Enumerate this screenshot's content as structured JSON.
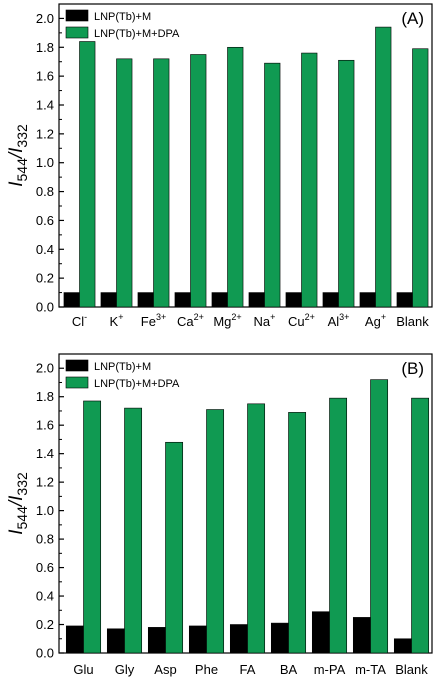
{
  "colors": {
    "series1": "#000000",
    "series2": "#109a52",
    "axis": "#000000"
  },
  "chart_data": [
    {
      "type": "bar",
      "panel_label": "(A)",
      "ylabel": {
        "main": "I",
        "sub1": "544",
        "sep": "/I",
        "sub2": "332"
      },
      "ylim": [
        0.0,
        2.1
      ],
      "yticks": [
        "0.0",
        "0.2",
        "0.4",
        "0.6",
        "0.8",
        "1.0",
        "1.2",
        "1.4",
        "1.6",
        "1.8",
        "2.0"
      ],
      "legend_position": "top-left",
      "grid": false,
      "categories": [
        {
          "base": "Cl",
          "sup": "-"
        },
        {
          "base": "K",
          "sup": "+"
        },
        {
          "base": "Fe",
          "sup": "3+"
        },
        {
          "base": "Ca",
          "sup": "2+"
        },
        {
          "base": "Mg",
          "sup": "2+"
        },
        {
          "base": "Na",
          "sup": "+"
        },
        {
          "base": "Cu",
          "sup": "2+"
        },
        {
          "base": "Al",
          "sup": "3+"
        },
        {
          "base": "Ag",
          "sup": "+"
        },
        {
          "base": "Blank",
          "sup": ""
        }
      ],
      "series": [
        {
          "name": "LNP(Tb)+M",
          "values": [
            0.1,
            0.1,
            0.1,
            0.1,
            0.1,
            0.1,
            0.1,
            0.1,
            0.1,
            0.1
          ]
        },
        {
          "name": "LNP(Tb)+M+DPA",
          "values": [
            1.84,
            1.72,
            1.72,
            1.75,
            1.8,
            1.69,
            1.76,
            1.71,
            1.94,
            1.79
          ]
        }
      ]
    },
    {
      "type": "bar",
      "panel_label": "(B)",
      "ylabel": {
        "main": "I",
        "sub1": "544",
        "sep": "/I",
        "sub2": "332"
      },
      "ylim": [
        0.0,
        2.1
      ],
      "yticks": [
        "0.0",
        "0.2",
        "0.4",
        "0.6",
        "0.8",
        "1.0",
        "1.2",
        "1.4",
        "1.6",
        "1.8",
        "2.0"
      ],
      "legend_position": "top-left",
      "grid": false,
      "categories": [
        {
          "base": "Glu",
          "sup": ""
        },
        {
          "base": "Gly",
          "sup": ""
        },
        {
          "base": "Asp",
          "sup": ""
        },
        {
          "base": "Phe",
          "sup": ""
        },
        {
          "base": "FA",
          "sup": ""
        },
        {
          "base": "BA",
          "sup": ""
        },
        {
          "base": "m-PA",
          "sup": ""
        },
        {
          "base": "m-TA",
          "sup": ""
        },
        {
          "base": "Blank",
          "sup": ""
        }
      ],
      "series": [
        {
          "name": "LNP(Tb)+M",
          "values": [
            0.19,
            0.17,
            0.18,
            0.19,
            0.2,
            0.21,
            0.29,
            0.25,
            0.1
          ]
        },
        {
          "name": "LNP(Tb)+M+DPA",
          "values": [
            1.77,
            1.72,
            1.48,
            1.71,
            1.75,
            1.69,
            1.79,
            1.92,
            1.79
          ]
        }
      ]
    }
  ]
}
